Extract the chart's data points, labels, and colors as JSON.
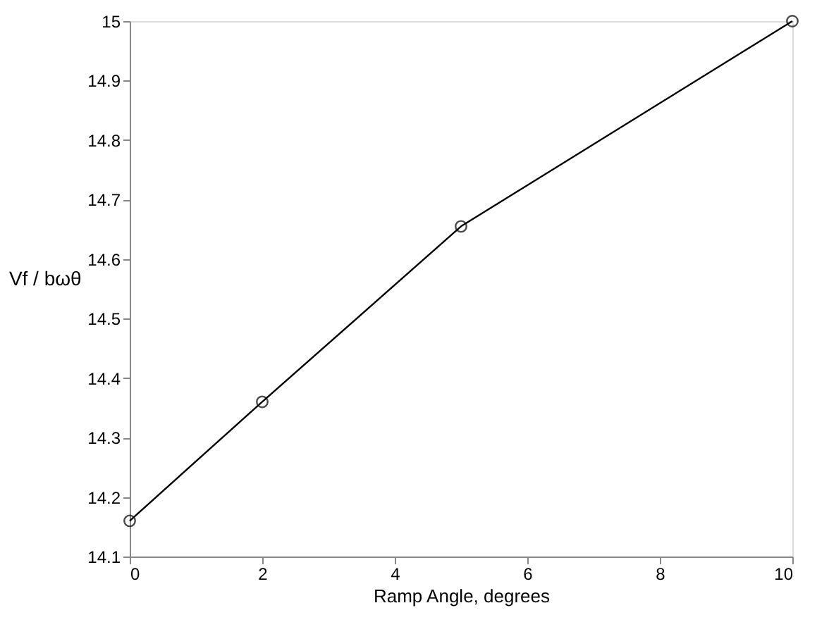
{
  "chart_data": {
    "type": "line",
    "xlabel": "Ramp Angle, degrees",
    "ylabel": "Vf / bωθ",
    "x": [
      0,
      2,
      5,
      10
    ],
    "series": [
      {
        "color": "#000000",
        "values": [
          14.16,
          14.36,
          14.655,
          15.0
        ]
      }
    ],
    "xlim": [
      0,
      10
    ],
    "xticks": [
      0,
      2,
      4,
      6,
      8,
      10
    ],
    "ylim": [
      14.1,
      15
    ],
    "yticks": [
      14.1,
      14.2,
      14.3,
      14.4,
      14.5,
      14.6,
      14.7,
      14.8,
      14.9,
      15
    ],
    "grid": false,
    "marker": "circle",
    "line_style": "solid"
  }
}
